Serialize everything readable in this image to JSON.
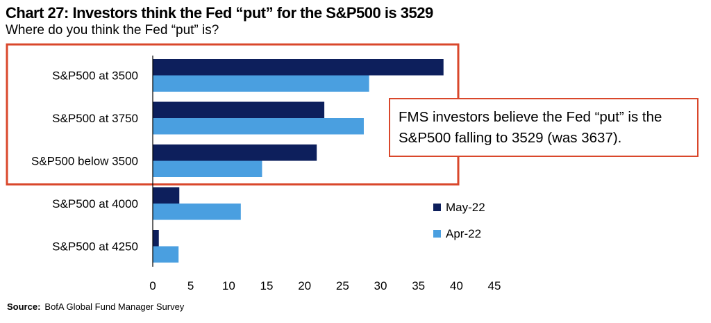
{
  "header": {
    "title": "Chart 27: Investors think the Fed “put” for the S&P500 is 3529",
    "subtitle": "Where do you think the Fed “put” is?"
  },
  "callout": {
    "line1": "FMS investors believe the Fed “put” is the",
    "line2": "S&P500 falling to 3529 (was 3637)."
  },
  "source": {
    "label": "Source:",
    "text": "BofA Global Fund Manager Survey"
  },
  "colors": {
    "may": "#0d1f5c",
    "apr": "#4a9fe0",
    "highlight": "#d9472b"
  },
  "chart_data": {
    "type": "bar",
    "orientation": "horizontal",
    "categories": [
      "S&P500 at 3500",
      "S&P500 at 3750",
      "S&P500 below 3500",
      "S&P500 at 4000",
      "S&P500 at 4250"
    ],
    "series": [
      {
        "name": "May-22",
        "values": [
          38.3,
          22.6,
          21.6,
          3.5,
          0.8
        ]
      },
      {
        "name": "Apr-22",
        "values": [
          28.5,
          27.8,
          14.4,
          11.6,
          3.4
        ]
      }
    ],
    "xlim": [
      0,
      45
    ],
    "xticks": [
      0,
      5,
      10,
      15,
      20,
      25,
      30,
      35,
      40,
      45
    ],
    "legend_position": "right",
    "highlighted_categories": [
      "S&P500 at 3500",
      "S&P500 at 3750",
      "S&P500 below 3500"
    ]
  }
}
